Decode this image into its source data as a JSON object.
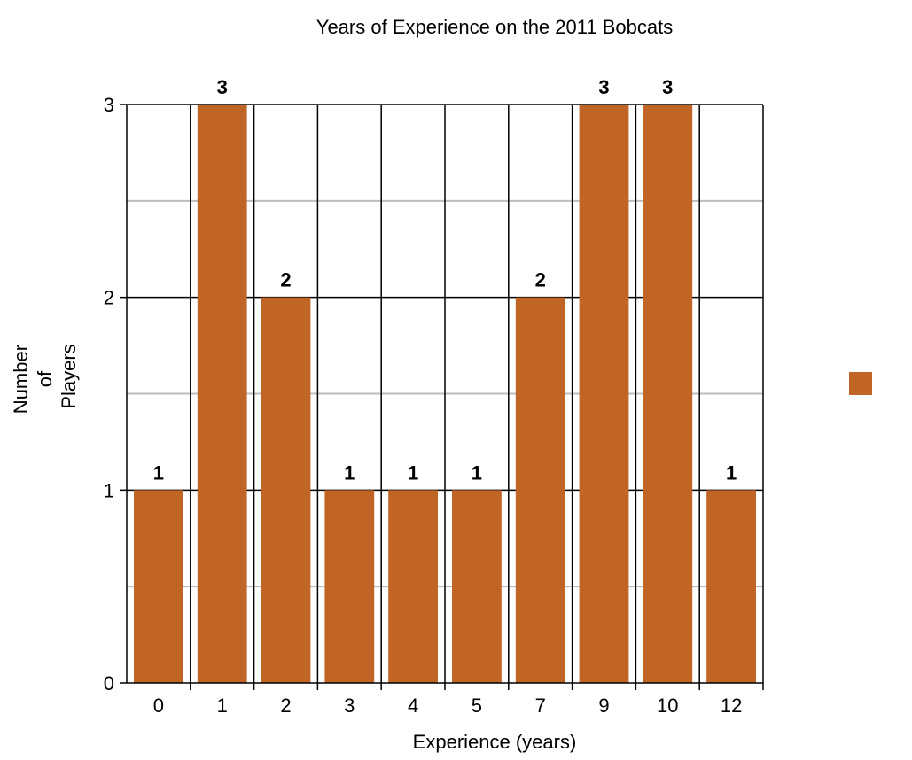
{
  "chart_data": {
    "type": "bar",
    "title": "Years of Experience on the 2011 Bobcats",
    "xlabel": "Experience (years)",
    "ylabel_lines": [
      "Number",
      "of",
      "Players"
    ],
    "categories": [
      "0",
      "1",
      "2",
      "3",
      "4",
      "5",
      "7",
      "9",
      "10",
      "12"
    ],
    "values": [
      1,
      3,
      2,
      1,
      1,
      1,
      2,
      3,
      3,
      1
    ],
    "data_labels": [
      "1",
      "3",
      "2",
      "1",
      "1",
      "1",
      "2",
      "3",
      "3",
      "1"
    ],
    "ylim": [
      0,
      3
    ],
    "yticks": [
      "0",
      "1",
      "2",
      "3"
    ],
    "grid": true,
    "legend": {
      "position": "right",
      "swatch_color": "#c06526"
    },
    "colors": {
      "bar": "#c06526",
      "gridline": "#bdbdbd"
    }
  }
}
